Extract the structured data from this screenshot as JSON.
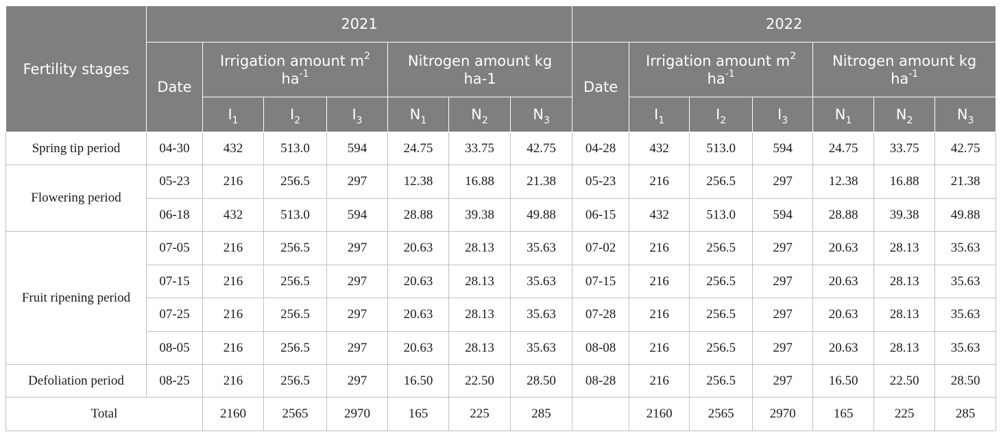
{
  "header": {
    "fertility_stages": "Fertility stages",
    "year1": "2021",
    "year2": "2022",
    "date": "Date",
    "irrigation": {
      "text": "Irrigation amount m",
      "sup": "2",
      "line2": "ha",
      "line2_sup": "-1"
    },
    "nitrogen": {
      "text": "Nitrogen amount kg",
      "line2": "ha",
      "line2_sup": "-1"
    },
    "nitrogen_2021": {
      "text": "Nitrogen amount kg",
      "line2": "ha-1"
    },
    "sub_cols": [
      {
        "base": "I",
        "sub": "1"
      },
      {
        "base": "I",
        "sub": "2"
      },
      {
        "base": "I",
        "sub": "3"
      },
      {
        "base": "N",
        "sub": "1"
      },
      {
        "base": "N",
        "sub": "2"
      },
      {
        "base": "N",
        "sub": "3"
      }
    ]
  },
  "stages": {
    "spring": "Spring tip period",
    "flowering": "Flowering period",
    "fruit": "Fruit ripening period",
    "defoliation": "Defoliation period",
    "total": "Total"
  },
  "rows": [
    {
      "d1": "04-30",
      "v1": [
        "432",
        "513.0",
        "594",
        "24.75",
        "33.75",
        "42.75"
      ],
      "d2": "04-28",
      "v2": [
        "432",
        "513.0",
        "594",
        "24.75",
        "33.75",
        "42.75"
      ]
    },
    {
      "d1": "05-23",
      "v1": [
        "216",
        "256.5",
        "297",
        "12.38",
        "16.88",
        "21.38"
      ],
      "d2": "05-23",
      "v2": [
        "216",
        "256.5",
        "297",
        "12.38",
        "16.88",
        "21.38"
      ]
    },
    {
      "d1": "06-18",
      "v1": [
        "432",
        "513.0",
        "594",
        "28.88",
        "39.38",
        "49.88"
      ],
      "d2": "06-15",
      "v2": [
        "432",
        "513.0",
        "594",
        "28.88",
        "39.38",
        "49.88"
      ]
    },
    {
      "d1": "07-05",
      "v1": [
        "216",
        "256.5",
        "297",
        "20.63",
        "28.13",
        "35.63"
      ],
      "d2": "07-02",
      "v2": [
        "216",
        "256.5",
        "297",
        "20.63",
        "28.13",
        "35.63"
      ]
    },
    {
      "d1": "07-15",
      "v1": [
        "216",
        "256.5",
        "297",
        "20.63",
        "28.13",
        "35.63"
      ],
      "d2": "07-15",
      "v2": [
        "216",
        "256.5",
        "297",
        "20.63",
        "28.13",
        "35.63"
      ]
    },
    {
      "d1": "07-25",
      "v1": [
        "216",
        "256.5",
        "297",
        "20.63",
        "28.13",
        "35.63"
      ],
      "d2": "07-28",
      "v2": [
        "216",
        "256.5",
        "297",
        "20.63",
        "28.13",
        "35.63"
      ]
    },
    {
      "d1": "08-05",
      "v1": [
        "216",
        "256.5",
        "297",
        "20.63",
        "28.13",
        "35.63"
      ],
      "d2": "08-08",
      "v2": [
        "216",
        "256.5",
        "297",
        "20.63",
        "28.13",
        "35.63"
      ]
    },
    {
      "d1": "08-25",
      "v1": [
        "216",
        "256.5",
        "297",
        "16.50",
        "22.50",
        "28.50"
      ],
      "d2": "08-28",
      "v2": [
        "216",
        "256.5",
        "297",
        "16.50",
        "22.50",
        "28.50"
      ]
    }
  ],
  "total": {
    "v1": [
      "2160",
      "2565",
      "2970",
      "165",
      "225",
      "285"
    ],
    "v2": [
      "2160",
      "2565",
      "2970",
      "165",
      "225",
      "285"
    ]
  }
}
